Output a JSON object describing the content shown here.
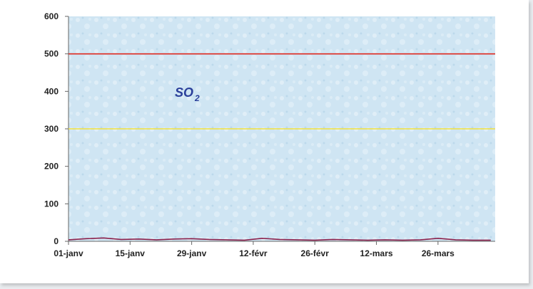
{
  "chart_data": {
    "type": "line",
    "title": "",
    "xlabel": "",
    "ylabel": "",
    "ylim": [
      0,
      600
    ],
    "y_ticks": [
      "0",
      "100",
      "200",
      "300",
      "400",
      "500",
      "600"
    ],
    "x_ticks": [
      "01-janv",
      "15-janv",
      "29-janv",
      "12-févr",
      "26-févr",
      "12-mars",
      "26-mars"
    ],
    "x_range_days": [
      0,
      97
    ],
    "x_tick_days": [
      0,
      14,
      28,
      42,
      56,
      70,
      84
    ],
    "grid": false,
    "legend": "none",
    "background_color": "#cfe5f3",
    "annotation": {
      "main": "SO",
      "sub": "2"
    },
    "reference_lines": [
      {
        "y": 500,
        "color": "#e0291f"
      },
      {
        "y": 300,
        "color": "#f2e23a"
      }
    ],
    "series": [
      {
        "color": "#8a1f4a",
        "x": [
          0,
          4,
          8,
          12,
          16,
          20,
          24,
          28,
          32,
          36,
          40,
          44,
          48,
          52,
          56,
          60,
          64,
          68,
          72,
          76,
          80,
          84,
          88,
          92,
          96
        ],
        "y": [
          4,
          7,
          9,
          5,
          6,
          4,
          6,
          7,
          5,
          4,
          3,
          8,
          5,
          4,
          3,
          5,
          4,
          3,
          4,
          3,
          4,
          8,
          4,
          3,
          3
        ]
      }
    ]
  }
}
